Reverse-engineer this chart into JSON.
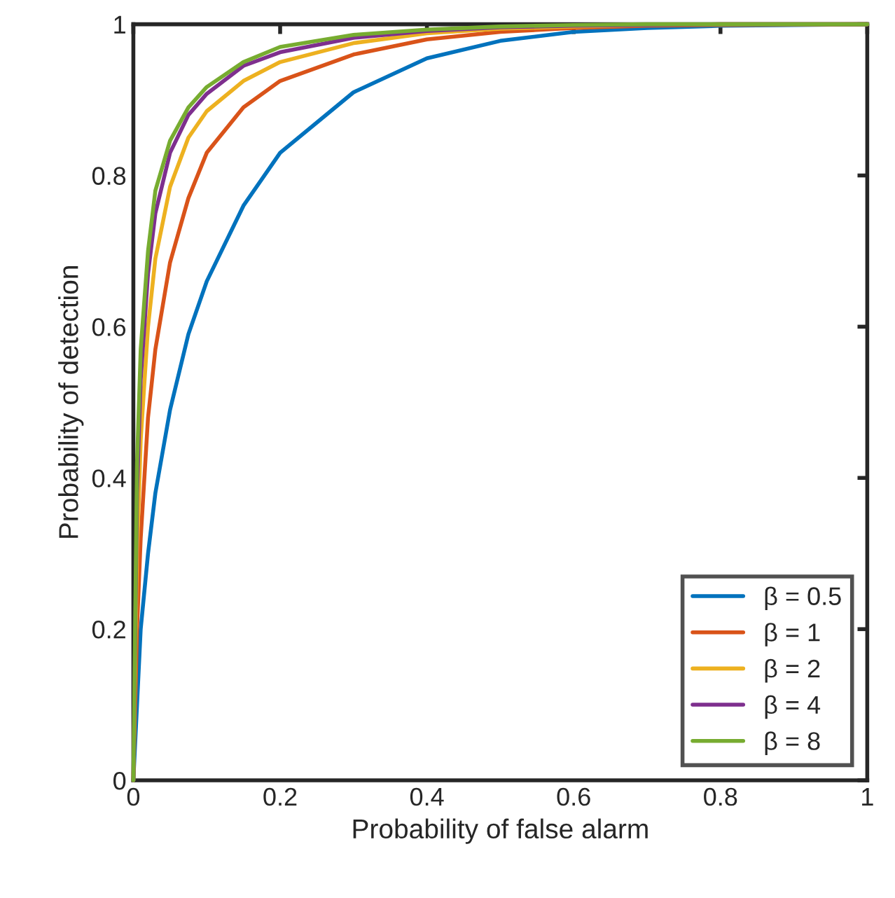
{
  "chart_data": {
    "type": "line",
    "xlabel": "Probability of false alarm",
    "ylabel": "Probability of detection",
    "x": [
      0,
      0.005,
      0.01,
      0.02,
      0.03,
      0.05,
      0.075,
      0.1,
      0.15,
      0.2,
      0.3,
      0.4,
      0.5,
      0.6,
      0.7,
      0.8,
      1
    ],
    "series": [
      {
        "name": "β = 0.5",
        "color": "#0072bd",
        "values": [
          0,
          0.1,
          0.2,
          0.3,
          0.38,
          0.49,
          0.59,
          0.66,
          0.76,
          0.83,
          0.91,
          0.955,
          0.978,
          0.99,
          0.995,
          0.998,
          1
        ]
      },
      {
        "name": "β = 1",
        "color": "#d95319",
        "values": [
          0,
          0.2,
          0.32,
          0.48,
          0.57,
          0.685,
          0.77,
          0.83,
          0.89,
          0.925,
          0.96,
          0.98,
          0.99,
          0.995,
          0.998,
          0.999,
          1
        ]
      },
      {
        "name": "β = 2",
        "color": "#edb120",
        "values": [
          0,
          0.3,
          0.45,
          0.6,
          0.69,
          0.785,
          0.85,
          0.885,
          0.925,
          0.95,
          0.975,
          0.988,
          0.994,
          0.997,
          0.999,
          1,
          1
        ]
      },
      {
        "name": "β = 4",
        "color": "#7e2f8e",
        "values": [
          0,
          0.38,
          0.53,
          0.67,
          0.75,
          0.83,
          0.88,
          0.908,
          0.945,
          0.963,
          0.982,
          0.991,
          0.996,
          0.998,
          0.999,
          1,
          1
        ]
      },
      {
        "name": "β = 8",
        "color": "#77ac30",
        "values": [
          0,
          0.42,
          0.57,
          0.7,
          0.78,
          0.846,
          0.89,
          0.917,
          0.95,
          0.97,
          0.986,
          0.993,
          0.997,
          0.999,
          1,
          1,
          1
        ]
      }
    ],
    "xlim": [
      0,
      1
    ],
    "ylim": [
      0,
      1
    ],
    "xticks": [
      0,
      0.2,
      0.4,
      0.6,
      0.8,
      1
    ],
    "yticks": [
      0,
      0.2,
      0.4,
      0.6,
      0.8,
      1
    ],
    "grid": false,
    "legend": "bottom right",
    "line_style": "solid"
  }
}
